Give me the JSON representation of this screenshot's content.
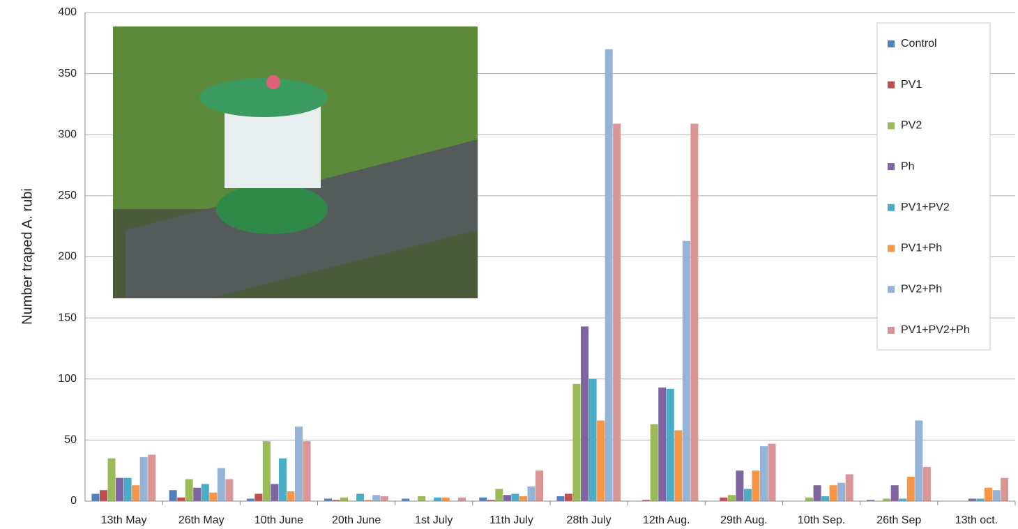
{
  "chart_data": {
    "type": "bar",
    "y_axis_label": "Number traped A. rubi",
    "categories": [
      "13th May",
      "26th May",
      "10th June",
      "20th June",
      "1st July",
      "11th July",
      "28th July",
      "12th Aug.",
      "29th Aug.",
      "10th Sep.",
      "26th Sep",
      "13th oct."
    ],
    "series": [
      {
        "name": "Control",
        "color": "#4f81bd",
        "values": [
          6,
          9,
          2,
          2,
          2,
          3,
          4,
          0,
          0,
          0,
          1,
          0
        ]
      },
      {
        "name": "PV1",
        "color": "#c0504d",
        "values": [
          9,
          3,
          6,
          1,
          0,
          1,
          6,
          1,
          3,
          0,
          0,
          0
        ]
      },
      {
        "name": "PV2",
        "color": "#9bbb59",
        "values": [
          35,
          18,
          49,
          3,
          4,
          10,
          96,
          63,
          5,
          3,
          2,
          0
        ]
      },
      {
        "name": "Ph",
        "color": "#8064a2",
        "values": [
          19,
          11,
          14,
          0,
          0,
          5,
          143,
          93,
          25,
          13,
          13,
          2
        ]
      },
      {
        "name": "PV1+PV2",
        "color": "#4bacc6",
        "values": [
          19,
          14,
          35,
          6,
          3,
          6,
          100,
          92,
          10,
          4,
          2,
          2
        ]
      },
      {
        "name": "PV1+Ph",
        "color": "#f79646",
        "values": [
          13,
          7,
          8,
          1,
          3,
          4,
          66,
          58,
          25,
          13,
          20,
          11
        ]
      },
      {
        "name": "PV2+Ph",
        "color": "#95b3d7",
        "values": [
          36,
          27,
          61,
          5,
          0,
          12,
          370,
          213,
          45,
          15,
          66,
          9
        ]
      },
      {
        "name": "PV1+PV2+Ph",
        "color": "#d99694",
        "values": [
          38,
          18,
          49,
          4,
          3,
          25,
          309,
          309,
          47,
          22,
          28,
          19
        ]
      }
    ],
    "ylim": [
      0,
      400
    ],
    "yticks": [
      0,
      50,
      100,
      150,
      200,
      250,
      300,
      350,
      400
    ],
    "grid": true,
    "legend": "right"
  }
}
